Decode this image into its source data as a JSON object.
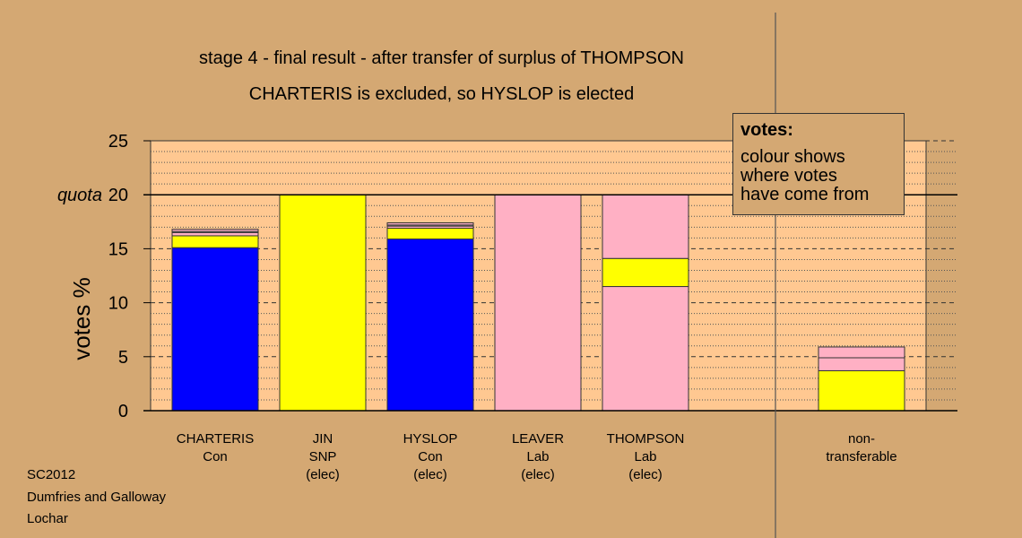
{
  "title_line1": "stage 4 - final result - after transfer of surplus of THOMPSON",
  "title_line2": "CHARTERIS is excluded, so HYSLOP is elected",
  "footer": [
    "SC2012",
    "Dumfries and Galloway",
    "Lochar"
  ],
  "legend": {
    "title": "votes:",
    "lines": [
      "colour shows",
      "where votes",
      "have come from"
    ]
  },
  "colors": {
    "background": "#D4A873",
    "plot_area": "#FFC891",
    "Con": "#0000FF",
    "SNP": "#FFFF00",
    "Lab": "#FFB0C4",
    "Other": "#FFFFFF"
  },
  "chart_data": {
    "type": "bar",
    "stacked": true,
    "ylabel": "votes %",
    "ylim": [
      0,
      25
    ],
    "yticks": [
      0,
      5,
      10,
      15,
      20,
      25
    ],
    "quota": {
      "label": "quota",
      "value": 20
    },
    "grid": true,
    "legend_placement": "top-right",
    "categories": [
      {
        "lines": [
          "CHARTERIS",
          "Con"
        ],
        "segments": [
          {
            "source": "Con",
            "value": 15.1
          },
          {
            "source": "SNP",
            "value": 1.1
          },
          {
            "source": "Lab",
            "value": 0.3
          },
          {
            "source": "Other",
            "value": 0.1
          },
          {
            "source": "Lab",
            "value": 0.2
          }
        ]
      },
      {
        "lines": [
          "JIN",
          "SNP",
          "(elec)"
        ],
        "segments": [
          {
            "source": "SNP",
            "value": 20.0
          }
        ]
      },
      {
        "lines": [
          "HYSLOP",
          "Con",
          "(elec)"
        ],
        "segments": [
          {
            "source": "Con",
            "value": 15.9
          },
          {
            "source": "SNP",
            "value": 1.0
          },
          {
            "source": "Lab",
            "value": 0.2
          },
          {
            "source": "Other",
            "value": 0.1
          },
          {
            "source": "Lab",
            "value": 0.2
          }
        ]
      },
      {
        "lines": [
          "LEAVER",
          "Lab",
          "(elec)"
        ],
        "segments": [
          {
            "source": "Lab",
            "value": 20.0
          }
        ]
      },
      {
        "lines": [
          "THOMPSON",
          "Lab",
          "(elec)"
        ],
        "segments": [
          {
            "source": "Lab",
            "value": 11.5
          },
          {
            "source": "SNP",
            "value": 2.6
          },
          {
            "source": "Lab",
            "value": 5.9
          }
        ]
      },
      {
        "lines": [
          "non-",
          "transferable"
        ],
        "segments": [
          {
            "source": "SNP",
            "value": 3.7
          },
          {
            "source": "Lab",
            "value": 1.2
          },
          {
            "source": "Lab",
            "value": 1.0
          }
        ]
      }
    ]
  }
}
